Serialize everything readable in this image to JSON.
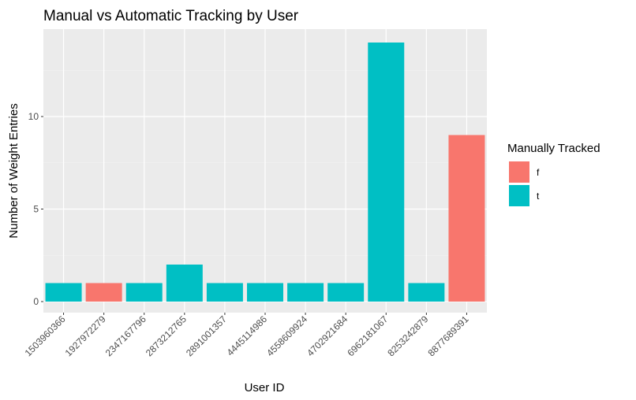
{
  "chart_data": {
    "type": "bar",
    "title": "Manual vs Automatic Tracking by User",
    "xlabel": "User ID",
    "ylabel": "Number of Weight Entries",
    "categories": [
      "1503960366",
      "1927972279",
      "2347167796",
      "2873212765",
      "2891001357",
      "4445114986",
      "4558609924",
      "4702921684",
      "6962181067",
      "8253242879",
      "8877689391"
    ],
    "values": [
      1,
      1,
      1,
      2,
      1,
      1,
      1,
      1,
      14,
      1,
      9
    ],
    "group": [
      "t",
      "f",
      "t",
      "t",
      "t",
      "t",
      "t",
      "t",
      "t",
      "t",
      "f"
    ],
    "ylim": [
      0,
      14
    ],
    "yticks": [
      0,
      5,
      10
    ],
    "grid": true,
    "legend": {
      "title": "Manually Tracked",
      "position": "right",
      "entries": [
        {
          "label": "f",
          "color": "#F8766D"
        },
        {
          "label": "t",
          "color": "#00BFC4"
        }
      ]
    }
  }
}
